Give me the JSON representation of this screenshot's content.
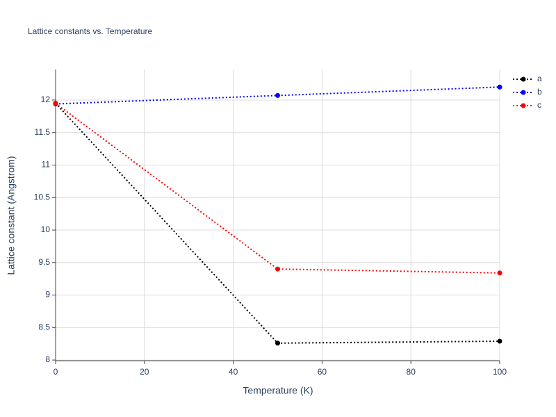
{
  "chart_data": {
    "type": "line",
    "title": "Lattice constants vs. Temperature",
    "x_label": "Temperature (K)",
    "y_label": "Lattice constant (Angstrom)",
    "x": [
      0,
      50,
      100
    ],
    "series": [
      {
        "name": "a",
        "color": "#000000",
        "values": [
          11.95,
          8.26,
          8.29
        ]
      },
      {
        "name": "b",
        "color": "#0000ff",
        "values": [
          11.94,
          12.07,
          12.2
        ]
      },
      {
        "name": "c",
        "color": "#ff0000",
        "values": [
          11.95,
          9.4,
          9.34
        ]
      }
    ],
    "xlim": [
      0,
      100
    ],
    "xticks": [
      0,
      20,
      40,
      60,
      80,
      100
    ],
    "ylim": [
      7.99,
      12.47
    ],
    "yticks": [
      8,
      8.5,
      9,
      9.5,
      10,
      10.5,
      11,
      11.5,
      12
    ],
    "grid": true,
    "legend": "top-right"
  }
}
